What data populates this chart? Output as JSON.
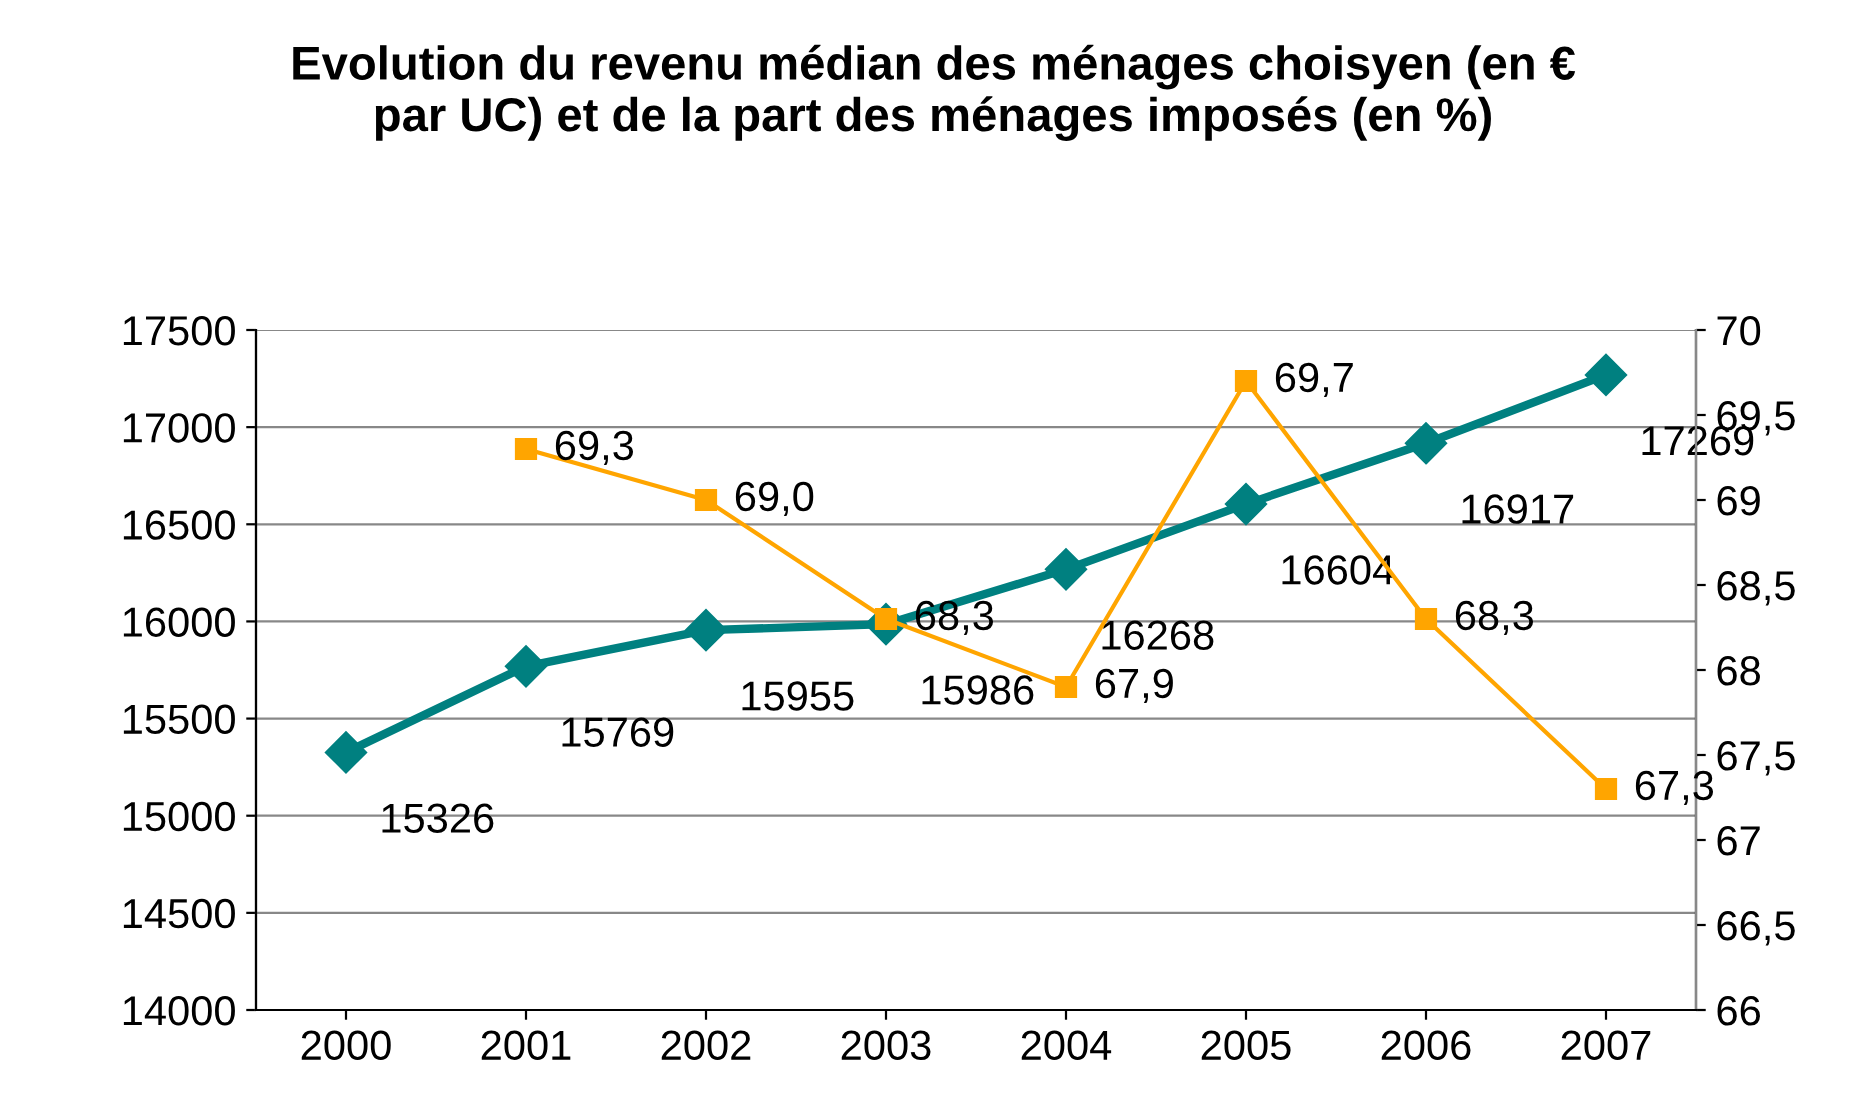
{
  "chart_data": {
    "type": "line",
    "title": "Evolution du revenu médian des ménages choisyen (en €\npar UC) et de la part des ménages imposés (en %)",
    "categories": [
      "2000",
      "2001",
      "2002",
      "2003",
      "2004",
      "2005",
      "2006",
      "2007"
    ],
    "series": [
      {
        "color": "#008080",
        "marker": "diamond",
        "values": [
          15326,
          15769,
          15955,
          15986,
          16268,
          16604,
          16917,
          17269
        ],
        "value_labels": [
          "15326",
          "15769",
          "15955",
          "15986",
          "16268",
          "16604",
          "16917",
          "17269"
        ]
      },
      {
        "color": "#ffa500",
        "marker": "square",
        "axis": "y2",
        "values": [
          null,
          69.3,
          69.0,
          68.3,
          67.9,
          69.7,
          68.3,
          67.3
        ],
        "value_labels": [
          null,
          "69,3",
          "69,0",
          "68,3",
          "67,9",
          "69,7",
          "68,3",
          "67,3"
        ]
      }
    ],
    "ylim": [
      14000,
      17500
    ],
    "yticks": [
      14000,
      14500,
      15000,
      15500,
      16000,
      16500,
      17000,
      17500
    ],
    "y2lim": [
      66,
      70
    ],
    "y2ticks": [
      66,
      {
        "value": 66.5,
        "label": "66,5"
      },
      67,
      {
        "value": 67.5,
        "label": "67,5"
      },
      68,
      {
        "value": 68.5,
        "label": "68,5"
      },
      69,
      {
        "value": 69.5,
        "label": "69,5"
      },
      70
    ],
    "grid": "y",
    "legend": false
  }
}
